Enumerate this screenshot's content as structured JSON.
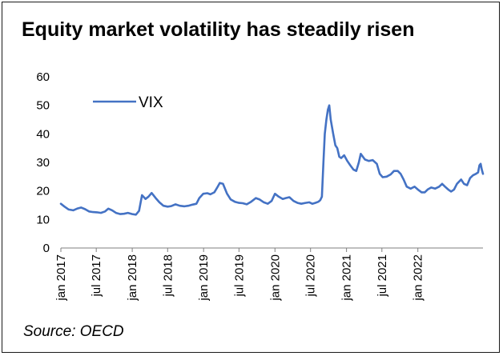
{
  "chart": {
    "title": "Equity market volatility has steadily risen",
    "source": "Source: OECD"
  },
  "chart_data": {
    "type": "line",
    "title": "Equity market volatility has steadily risen",
    "xlabel": "",
    "ylabel": "",
    "ylim": [
      0,
      60
    ],
    "yticks": [
      0,
      10,
      20,
      30,
      40,
      50,
      60
    ],
    "xlim": [
      "2017-01-01",
      "2022-11-30"
    ],
    "xticks": [
      {
        "date": "2017-01-01",
        "label": "jan 2017"
      },
      {
        "date": "2017-07-01",
        "label": "jul 2017"
      },
      {
        "date": "2018-01-01",
        "label": "jan 2018"
      },
      {
        "date": "2018-07-01",
        "label": "jul 2018"
      },
      {
        "date": "2019-01-01",
        "label": "jan 2019"
      },
      {
        "date": "2019-07-01",
        "label": "jul 2019"
      },
      {
        "date": "2020-01-01",
        "label": "jan 2020"
      },
      {
        "date": "2020-07-01",
        "label": "jul 2020"
      },
      {
        "date": "2021-01-01",
        "label": "jan 2021"
      },
      {
        "date": "2021-07-01",
        "label": "jul 2021"
      },
      {
        "date": "2022-01-01",
        "label": "jan 2022"
      }
    ],
    "grid": false,
    "legend_position": "top-left",
    "series": [
      {
        "name": "VIX",
        "color": "#4472C4",
        "points": [
          [
            "2017-01-01",
            15.5
          ],
          [
            "2017-01-20",
            14.5
          ],
          [
            "2017-02-10",
            13.5
          ],
          [
            "2017-03-05",
            13.2
          ],
          [
            "2017-03-25",
            13.8
          ],
          [
            "2017-04-15",
            14.2
          ],
          [
            "2017-05-05",
            13.6
          ],
          [
            "2017-05-25",
            12.8
          ],
          [
            "2017-06-15",
            12.6
          ],
          [
            "2017-07-05",
            12.5
          ],
          [
            "2017-07-25",
            12.3
          ],
          [
            "2017-08-15",
            12.8
          ],
          [
            "2017-09-01",
            13.8
          ],
          [
            "2017-09-20",
            13.2
          ],
          [
            "2017-10-10",
            12.3
          ],
          [
            "2017-11-01",
            11.9
          ],
          [
            "2017-11-20",
            12.0
          ],
          [
            "2017-12-10",
            12.3
          ],
          [
            "2018-01-01",
            11.9
          ],
          [
            "2018-01-20",
            11.7
          ],
          [
            "2018-02-05",
            13.0
          ],
          [
            "2018-02-20",
            18.5
          ],
          [
            "2018-03-10",
            17.2
          ],
          [
            "2018-03-25",
            18.0
          ],
          [
            "2018-04-10",
            19.3
          ],
          [
            "2018-05-01",
            17.5
          ],
          [
            "2018-05-20",
            16.0
          ],
          [
            "2018-06-10",
            14.8
          ],
          [
            "2018-07-01",
            14.5
          ],
          [
            "2018-07-20",
            14.7
          ],
          [
            "2018-08-10",
            15.3
          ],
          [
            "2018-09-01",
            14.8
          ],
          [
            "2018-09-25",
            14.6
          ],
          [
            "2018-10-15",
            14.8
          ],
          [
            "2018-11-05",
            15.2
          ],
          [
            "2018-11-25",
            15.5
          ],
          [
            "2018-12-10",
            17.5
          ],
          [
            "2018-12-30",
            19.0
          ],
          [
            "2019-01-20",
            19.2
          ],
          [
            "2019-02-05",
            18.8
          ],
          [
            "2019-02-25",
            19.5
          ],
          [
            "2019-03-10",
            21.0
          ],
          [
            "2019-03-25",
            22.8
          ],
          [
            "2019-04-10",
            22.5
          ],
          [
            "2019-05-01",
            19.0
          ],
          [
            "2019-05-20",
            17.0
          ],
          [
            "2019-06-10",
            16.2
          ],
          [
            "2019-07-01",
            15.8
          ],
          [
            "2019-07-20",
            15.7
          ],
          [
            "2019-08-10",
            15.3
          ],
          [
            "2019-09-01",
            16.2
          ],
          [
            "2019-09-25",
            17.5
          ],
          [
            "2019-10-15",
            17.0
          ],
          [
            "2019-11-05",
            16.0
          ],
          [
            "2019-11-25",
            15.5
          ],
          [
            "2019-12-15",
            16.5
          ],
          [
            "2020-01-01",
            19.0
          ],
          [
            "2020-01-20",
            18.0
          ],
          [
            "2020-02-10",
            17.2
          ],
          [
            "2020-02-25",
            17.5
          ],
          [
            "2020-03-15",
            17.8
          ],
          [
            "2020-04-05",
            16.5
          ],
          [
            "2020-04-25",
            15.8
          ],
          [
            "2020-05-15",
            15.5
          ],
          [
            "2020-06-05",
            15.8
          ],
          [
            "2020-06-25",
            16.0
          ],
          [
            "2020-07-10",
            15.5
          ],
          [
            "2020-07-25",
            15.8
          ],
          [
            "2020-08-10",
            16.2
          ],
          [
            "2020-08-20",
            16.8
          ],
          [
            "2020-08-28",
            18.0
          ],
          [
            "2020-09-05",
            30.0
          ],
          [
            "2020-09-12",
            40.0
          ],
          [
            "2020-09-20",
            45.0
          ],
          [
            "2020-09-28",
            48.5
          ],
          [
            "2020-10-05",
            50.0
          ],
          [
            "2020-10-12",
            45.0
          ],
          [
            "2020-10-25",
            40.0
          ],
          [
            "2020-11-05",
            36.0
          ],
          [
            "2020-11-15",
            35.0
          ],
          [
            "2020-11-25",
            32.0
          ],
          [
            "2020-12-05",
            31.5
          ],
          [
            "2020-12-20",
            32.5
          ],
          [
            "2021-01-05",
            30.5
          ],
          [
            "2021-01-20",
            29.0
          ],
          [
            "2021-02-05",
            27.5
          ],
          [
            "2021-02-20",
            27.0
          ],
          [
            "2021-03-05",
            30.0
          ],
          [
            "2021-03-15",
            33.0
          ],
          [
            "2021-04-05",
            31.0
          ],
          [
            "2021-04-25",
            30.5
          ],
          [
            "2021-05-15",
            30.8
          ],
          [
            "2021-06-05",
            29.5
          ],
          [
            "2021-06-20",
            26.0
          ],
          [
            "2021-07-05",
            24.8
          ],
          [
            "2021-07-25",
            25.0
          ],
          [
            "2021-08-15",
            25.8
          ],
          [
            "2021-09-01",
            27.0
          ],
          [
            "2021-09-20",
            27.0
          ],
          [
            "2021-10-05",
            26.0
          ],
          [
            "2021-10-20",
            24.0
          ],
          [
            "2021-11-05",
            21.5
          ],
          [
            "2021-11-25",
            20.8
          ],
          [
            "2021-12-15",
            21.5
          ],
          [
            "2022-01-01",
            20.5
          ],
          [
            "2022-01-20",
            19.5
          ],
          [
            "2022-02-05",
            19.5
          ],
          [
            "2022-02-20",
            20.5
          ],
          [
            "2022-03-10",
            21.2
          ],
          [
            "2022-03-30",
            20.8
          ],
          [
            "2022-04-20",
            21.5
          ],
          [
            "2022-05-05",
            22.5
          ],
          [
            "2022-05-20",
            21.5
          ],
          [
            "2022-06-05",
            20.5
          ],
          [
            "2022-06-20",
            19.8
          ],
          [
            "2022-07-05",
            20.5
          ],
          [
            "2022-07-20",
            22.5
          ],
          [
            "2022-08-10",
            24.0
          ],
          [
            "2022-08-25",
            22.5
          ],
          [
            "2022-09-10",
            22.0
          ],
          [
            "2022-09-25",
            24.5
          ],
          [
            "2022-10-10",
            25.5
          ],
          [
            "2022-10-25",
            26.0
          ],
          [
            "2022-11-05",
            26.5
          ],
          [
            "2022-11-12",
            29.0
          ],
          [
            "2022-11-18",
            29.5
          ],
          [
            "2022-11-24",
            27.5
          ],
          [
            "2022-11-30",
            26.0
          ]
        ]
      }
    ]
  }
}
